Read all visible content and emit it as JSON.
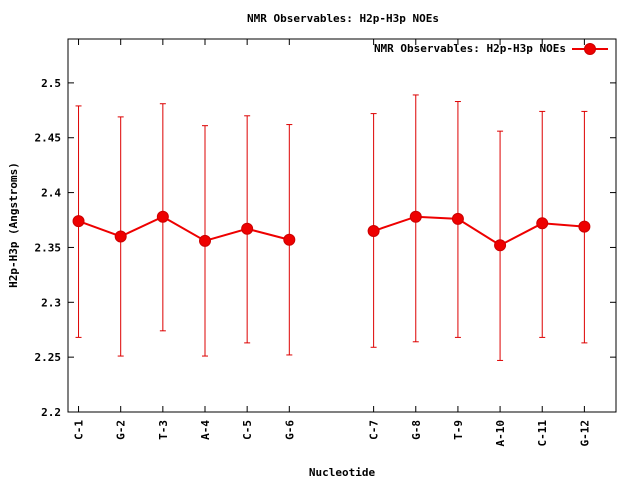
{
  "chart_data": {
    "type": "line",
    "title": "NMR Observables: H2p-H3p NOEs",
    "xlabel": "Nucleotide",
    "ylabel": "H2p-H3p (Angstroms)",
    "ylim": [
      2.2,
      2.54
    ],
    "yticks": [
      2.2,
      2.25,
      2.3,
      2.35,
      2.4,
      2.45,
      2.5
    ],
    "ytick_labels": [
      "2.2",
      "2.25",
      "2.3",
      "2.35",
      "2.4",
      "2.45",
      "2.5"
    ],
    "xlim": [
      0,
      13
    ],
    "legend_position": "top-right",
    "grid": false,
    "colors": {
      "series": "#ee0000",
      "axis": "#000000"
    },
    "categories": [
      "C-1",
      "G-2",
      "T-3",
      "A-4",
      "C-5",
      "G-6",
      "C-7",
      "G-8",
      "T-9",
      "A-10",
      "C-11",
      "G-12"
    ],
    "x": [
      0.25,
      1.25,
      2.25,
      3.25,
      4.25,
      5.25,
      7.25,
      8.25,
      9.25,
      10.25,
      11.25,
      12.25
    ],
    "segments": [
      [
        0,
        5
      ],
      [
        6,
        11
      ]
    ],
    "series": [
      {
        "name": "NMR Observables: H2p-H3p NOEs",
        "values": [
          2.374,
          2.36,
          2.378,
          2.356,
          2.367,
          2.357,
          2.365,
          2.378,
          2.376,
          2.352,
          2.372,
          2.369
        ],
        "err_low": [
          2.268,
          2.251,
          2.274,
          2.251,
          2.263,
          2.252,
          2.259,
          2.264,
          2.268,
          2.247,
          2.268,
          2.263
        ],
        "err_high": [
          2.479,
          2.469,
          2.481,
          2.461,
          2.47,
          2.462,
          2.472,
          2.489,
          2.483,
          2.456,
          2.474,
          2.474
        ]
      }
    ]
  }
}
